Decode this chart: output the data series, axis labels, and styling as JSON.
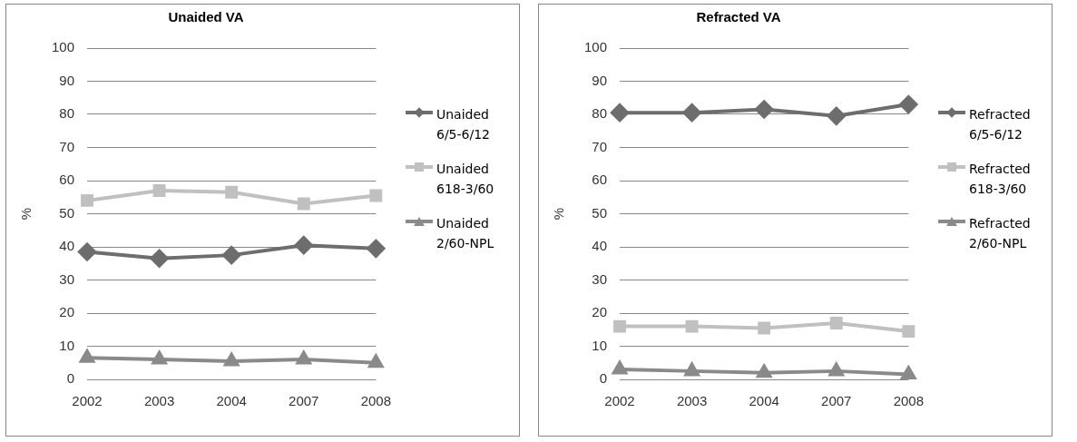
{
  "chart_data": [
    {
      "type": "line",
      "title": "Unaided VA",
      "ylabel": "%",
      "categories": [
        "2002",
        "2003",
        "2004",
        "2007",
        "2008"
      ],
      "ylim": [
        0,
        100
      ],
      "yticks": [
        0,
        10,
        20,
        30,
        40,
        50,
        60,
        70,
        80,
        90,
        100
      ],
      "grid": "y",
      "legend": "right",
      "series": [
        {
          "name": "Unaided 6/5-6/12",
          "color": "#6d6d6d",
          "marker": "diamond",
          "values": [
            38.5,
            36.5,
            37.5,
            40.5,
            39.5
          ]
        },
        {
          "name": "Unaided 618-3/60",
          "color": "#c0c0c0",
          "marker": "square",
          "values": [
            54,
            57,
            56.5,
            53,
            55.5
          ]
        },
        {
          "name": "Unaided 2/60-NPL",
          "color": "#8a8a8a",
          "marker": "triangle",
          "values": [
            6.5,
            6,
            5.5,
            6,
            5
          ]
        }
      ]
    },
    {
      "type": "line",
      "title": "Refracted VA",
      "ylabel": "%",
      "categories": [
        "2002",
        "2003",
        "2004",
        "2007",
        "2008"
      ],
      "ylim": [
        0,
        100
      ],
      "yticks": [
        0,
        10,
        20,
        30,
        40,
        50,
        60,
        70,
        80,
        90,
        100
      ],
      "grid": "y",
      "legend": "right",
      "series": [
        {
          "name": "Refracted 6/5-6/12",
          "color": "#6d6d6d",
          "marker": "diamond",
          "values": [
            80.5,
            80.5,
            81.5,
            79.5,
            83
          ]
        },
        {
          "name": "Refracted 618-3/60",
          "color": "#c0c0c0",
          "marker": "square",
          "values": [
            16,
            16,
            15.5,
            17,
            14.5
          ]
        },
        {
          "name": "Refracted 2/60-NPL",
          "color": "#8a8a8a",
          "marker": "triangle",
          "values": [
            3,
            2.5,
            2,
            2.5,
            1.5
          ]
        }
      ]
    }
  ]
}
